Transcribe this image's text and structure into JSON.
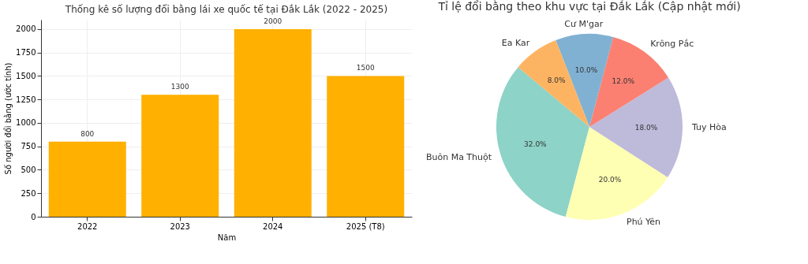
{
  "chart_data": [
    {
      "type": "bar",
      "title": "Thống kê số lượng đổi bằng lái xe quốc tế tại Đắk Lắk (2022 - 2025)",
      "xlabel": "Năm",
      "ylabel": "Số người đổi bằng (ước tính)",
      "categories": [
        "2022",
        "2023",
        "2024",
        "2025 (T8)"
      ],
      "values": [
        800,
        1300,
        2000,
        1500
      ],
      "color": "#ffb000",
      "ylim": [
        0,
        2100
      ],
      "yticks": [
        0,
        250,
        500,
        750,
        1000,
        1250,
        1500,
        1750,
        2000
      ],
      "grid": true,
      "data_labels": true
    },
    {
      "type": "pie",
      "title": "Tỉ lệ đổi bằng theo khu vực tại Đắk Lắk (Cập nhật mới)",
      "categories": [
        "Buôn Ma Thuột",
        "Phú Yên",
        "Tuy Hòa",
        "Krông Pắc",
        "Cư M'gar",
        "Ea Kar"
      ],
      "values": [
        32,
        20,
        18,
        12,
        10,
        8
      ],
      "colors": [
        "#8dd3c7",
        "#ffffb3",
        "#bebada",
        "#fb8072",
        "#80b1d3",
        "#fdb462"
      ],
      "value_labels": [
        "32.0%",
        "20.0%",
        "18.0%",
        "12.0%",
        "10.0%",
        "8.0%"
      ],
      "data_labels": true
    }
  ]
}
